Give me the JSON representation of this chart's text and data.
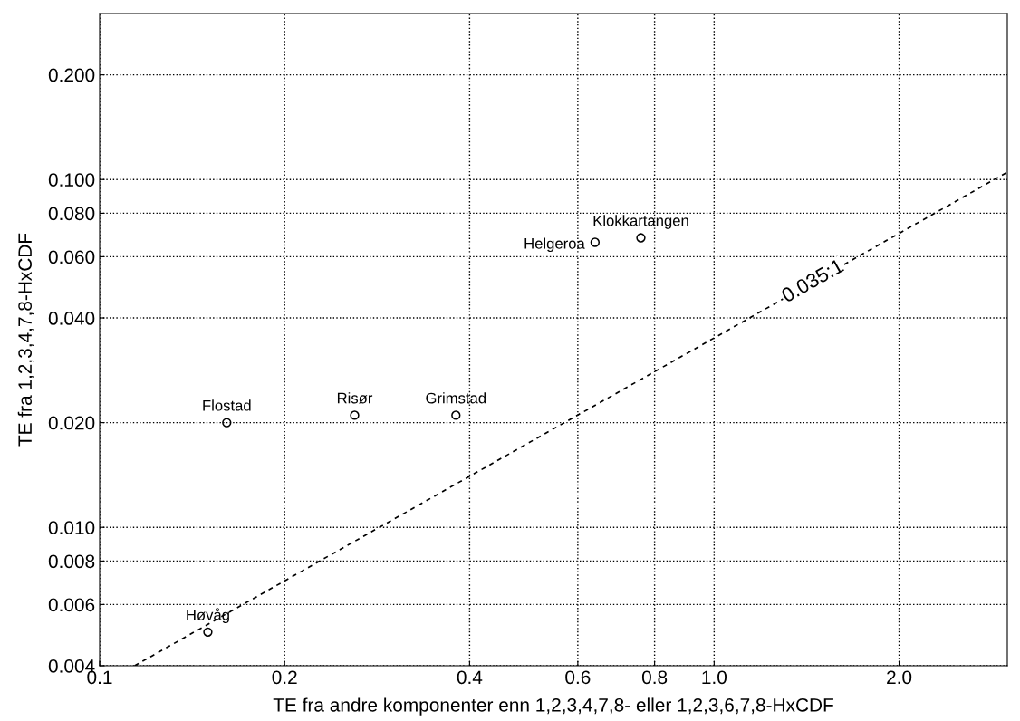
{
  "chart_data": {
    "type": "scatter",
    "xlabel": "TE fra andre komponenter enn 1,2,3,4,7,8- eller 1,2,3,6,7,8-HxCDF",
    "ylabel": "TE fra 1,2,3,4,7,8-HxCDF",
    "log": "xy",
    "xlim": [
      0.1,
      3.0
    ],
    "ylim": [
      0.004,
      0.3
    ],
    "xticks": [
      {
        "value": 0.1,
        "label": "0.1"
      },
      {
        "value": 0.2,
        "label": "0.2"
      },
      {
        "value": 0.4,
        "label": "0.4"
      },
      {
        "value": 0.6,
        "label": "0.6"
      },
      {
        "value": 0.8,
        "label": "0.8"
      },
      {
        "value": 1.0,
        "label": "1.0"
      },
      {
        "value": 2.0,
        "label": "2.0"
      }
    ],
    "yticks": [
      {
        "value": 0.004,
        "label": "0.004"
      },
      {
        "value": 0.006,
        "label": "0.006"
      },
      {
        "value": 0.008,
        "label": "0.008"
      },
      {
        "value": 0.01,
        "label": "0.010"
      },
      {
        "value": 0.02,
        "label": "0.020"
      },
      {
        "value": 0.04,
        "label": "0.040"
      },
      {
        "value": 0.06,
        "label": "0.060"
      },
      {
        "value": 0.08,
        "label": "0.080"
      },
      {
        "value": 0.1,
        "label": "0.100"
      },
      {
        "value": 0.2,
        "label": "0.200"
      }
    ],
    "grid": true,
    "legend": false,
    "series": [
      {
        "color": "#000000",
        "marker": "circle",
        "x": [
          0.15,
          0.161,
          0.26,
          0.38,
          0.64,
          0.76
        ],
        "values": [
          0.005,
          0.02,
          0.021,
          0.021,
          0.066,
          0.068
        ]
      },
      {
        "type": "line",
        "color": "#000000",
        "line_style": "dashed",
        "marker": "none",
        "x": [
          0.114,
          3.0
        ],
        "values": [
          0.004,
          0.105
        ]
      }
    ],
    "annotations": [
      {
        "text": "Høvåg",
        "x": 0.15,
        "y": 0.005
      },
      {
        "text": "Flostad",
        "x": 0.161,
        "y": 0.02
      },
      {
        "text": "Risør",
        "x": 0.26,
        "y": 0.021
      },
      {
        "text": "Grimstad",
        "x": 0.38,
        "y": 0.021
      },
      {
        "text": "Helgeroa",
        "x": 0.64,
        "y": 0.066
      },
      {
        "text": "Klokkartangen",
        "x": 0.76,
        "y": 0.068
      },
      {
        "text": "0.035:1",
        "x": 1.45,
        "y": 0.05075
      }
    ]
  }
}
